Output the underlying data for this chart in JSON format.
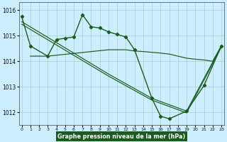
{
  "background_color": "#cceeff",
  "line_color": "#1a5c1a",
  "grid_color": "#aacccc",
  "xlabel": "Graphe pression niveau de la mer (hPa)",
  "yticks": [
    1012,
    1013,
    1014,
    1015,
    1016
  ],
  "xticks": [
    0,
    1,
    2,
    3,
    4,
    5,
    6,
    7,
    8,
    9,
    10,
    11,
    12,
    13,
    14,
    15,
    16,
    17,
    18,
    19,
    20,
    21,
    22,
    23
  ],
  "ylim": [
    1011.5,
    1016.3
  ],
  "xlim": [
    -0.3,
    23.3
  ],
  "series_main": {
    "x": [
      0,
      1,
      3,
      4,
      5,
      6,
      7,
      8,
      9,
      10,
      11,
      12,
      13,
      15,
      16,
      17,
      19,
      21,
      23
    ],
    "y": [
      1015.75,
      1014.6,
      1014.2,
      1014.85,
      1014.9,
      1014.95,
      1015.82,
      1015.35,
      1015.3,
      1015.15,
      1015.05,
      1014.95,
      1014.45,
      1012.55,
      1011.85,
      1011.75,
      1012.05,
      1013.05,
      1014.6
    ]
  },
  "series_flat": {
    "x": [
      1,
      3,
      10,
      11,
      12,
      13,
      14,
      15,
      16,
      17,
      18,
      19,
      20,
      21,
      22,
      23
    ],
    "y": [
      1014.2,
      1014.2,
      1014.45,
      1014.45,
      1014.45,
      1014.4,
      1014.38,
      1014.35,
      1014.32,
      1014.28,
      1014.2,
      1014.12,
      1014.08,
      1014.05,
      1014.0,
      1014.6
    ]
  },
  "series_diag": {
    "x": [
      0,
      10,
      15,
      19,
      23
    ],
    "y": [
      1015.55,
      1013.5,
      1012.55,
      1012.05,
      1014.6
    ]
  },
  "series_diag2": {
    "x": [
      0,
      10,
      15,
      19,
      23
    ],
    "y": [
      1015.45,
      1013.42,
      1012.48,
      1011.98,
      1014.55
    ]
  }
}
